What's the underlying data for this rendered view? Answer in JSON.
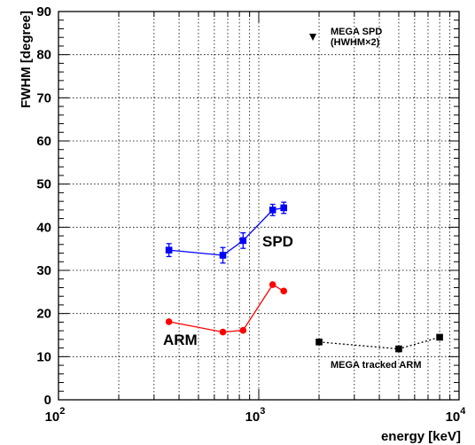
{
  "chart_data": {
    "type": "line",
    "xlabel": "energy [keV]",
    "ylabel": "FWHM [degree]",
    "x_scale": "log",
    "xlim": [
      100,
      10000
    ],
    "ylim": [
      0,
      90
    ],
    "grid": true,
    "x_ticks": [
      {
        "value": 100,
        "base": "10",
        "exp": "2"
      },
      {
        "value": 1000,
        "base": "10",
        "exp": "3"
      },
      {
        "value": 10000,
        "base": "10",
        "exp": "4"
      }
    ],
    "y_ticks": [
      "0",
      "10",
      "20",
      "30",
      "40",
      "50",
      "60",
      "70",
      "80",
      "90"
    ],
    "series": [
      {
        "name": "SPD",
        "color": "#0000ff",
        "marker": "square",
        "line": "solid",
        "x": [
          356,
          662,
          835,
          1173,
          1333
        ],
        "y": [
          34.7,
          33.5,
          36.9,
          44.0,
          44.5
        ],
        "yerr": [
          1.5,
          1.8,
          1.8,
          1.3,
          1.3
        ]
      },
      {
        "name": "ARM",
        "color": "#ff0000",
        "marker": "circle",
        "line": "solid",
        "x": [
          356,
          662,
          835,
          1173,
          1333
        ],
        "y": [
          18.1,
          15.7,
          16.1,
          26.7,
          25.2
        ]
      },
      {
        "name": "MEGA tracked ARM",
        "color": "#000000",
        "marker": "square",
        "line": "dotted",
        "x": [
          2000,
          5000,
          8000
        ],
        "y": [
          13.4,
          11.8,
          14.5
        ]
      },
      {
        "name": "MEGA SPD",
        "color": "#000000",
        "marker": "triangle-down",
        "line": "none",
        "x": [],
        "y": []
      }
    ],
    "annotations": {
      "spd": "SPD",
      "arm": "ARM",
      "mega_arm": "MEGA tracked ARM",
      "mega_spd": "MEGA SPD",
      "mega_spd_sub": "(HWHM×2)"
    }
  }
}
